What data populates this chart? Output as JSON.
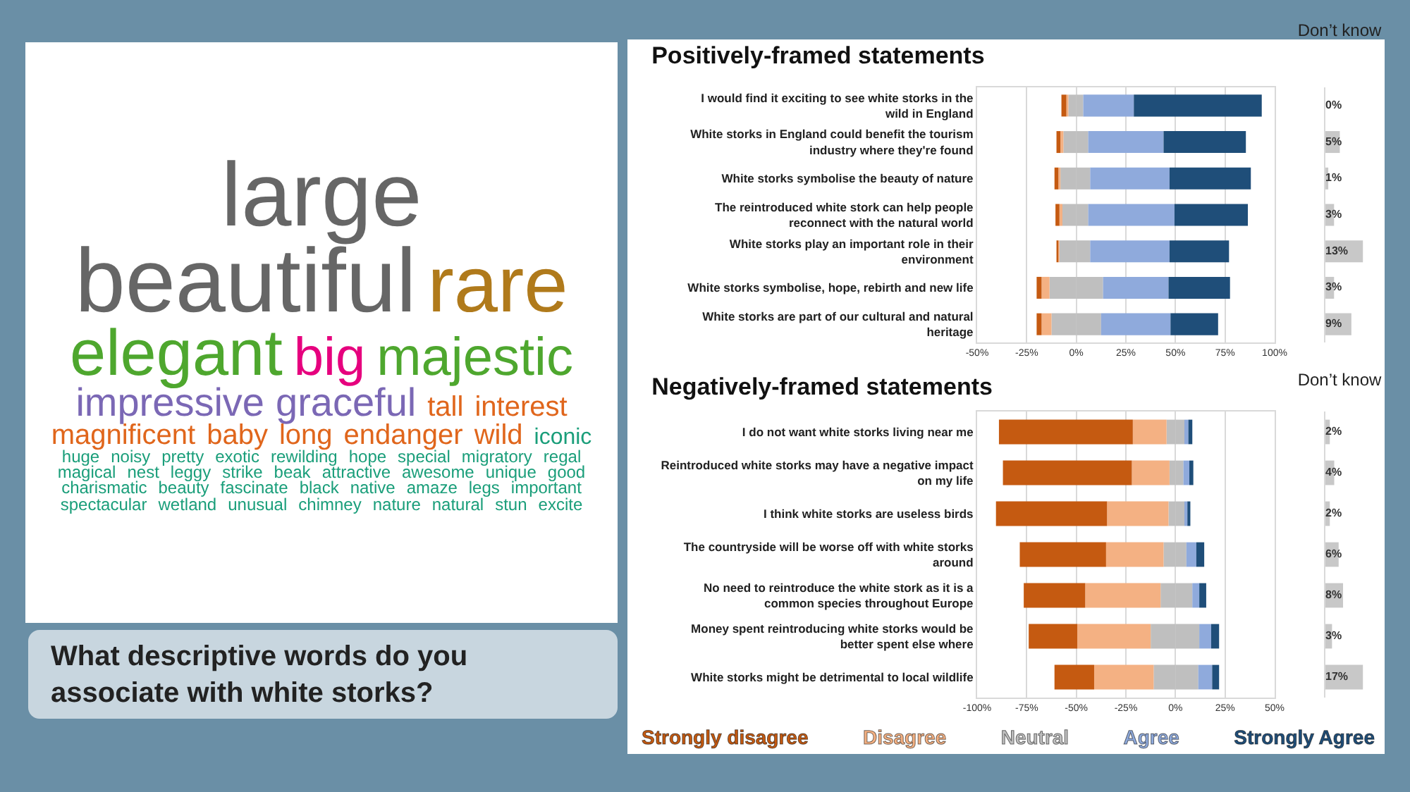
{
  "chart_data": [
    {
      "type": "other",
      "title": "What descriptive words do you associate with white storks?",
      "annotations": [
        "large",
        "beautiful",
        "rare",
        "elegant",
        "big",
        "majestic",
        "impressive",
        "graceful",
        "tall",
        "interest",
        "magnificent",
        "baby",
        "long",
        "endanger",
        "wild",
        "iconic",
        "huge",
        "noisy",
        "pretty",
        "exotic",
        "rewilding",
        "hope",
        "special",
        "migratory",
        "regal",
        "magical",
        "nest",
        "leggy",
        "strike",
        "beak",
        "attractive",
        "awesome",
        "unique",
        "good",
        "charismatic",
        "beauty",
        "fascinate",
        "black",
        "native",
        "amaze",
        "legs",
        "important",
        "spectacular",
        "wetland",
        "unusual",
        "chimney",
        "nature",
        "natural",
        "stun",
        "excite"
      ],
      "colors": [
        "#666666",
        "#666666",
        "#b07a1b",
        "#4ea72e",
        "#e6007e",
        "#4ea72e",
        "#7b68b5",
        "#7b68b5",
        "#e0661c",
        "#e0661c",
        "#e0661c",
        "#e0661c",
        "#e0661c",
        "#e0661c",
        "#e0661c",
        "#1a9e7a",
        "#1a9e7a",
        "#1a9e7a",
        "#1a9e7a",
        "#1a9e7a",
        "#1a9e7a",
        "#1a9e7a",
        "#1a9e7a",
        "#1a9e7a",
        "#1a9e7a",
        "#1a9e7a",
        "#1a9e7a",
        "#1a9e7a",
        "#1a9e7a",
        "#1a9e7a",
        "#1a9e7a",
        "#1a9e7a",
        "#1a9e7a",
        "#1a9e7a",
        "#1a9e7a",
        "#1a9e7a",
        "#1a9e7a",
        "#1a9e7a",
        "#1a9e7a",
        "#1a9e7a",
        "#1a9e7a",
        "#1a9e7a",
        "#1a9e7a",
        "#1a9e7a",
        "#1a9e7a",
        "#1a9e7a",
        "#1a9e7a",
        "#1a9e7a",
        "#1a9e7a",
        "#1a9e7a"
      ]
    },
    {
      "type": "bar",
      "title": "Positively-framed statements",
      "orientation": "horizontal",
      "stacked": true,
      "grid": "x",
      "categories": [
        "I would find it exciting to see white storks in the wild in England",
        "White storks in England could benefit the tourism industry where they're found",
        "White storks symbolise the beauty of nature",
        "The reintroduced white stork can help people reconnect with the natural world",
        "White storks play an important role in their environment",
        "White storks symbolise, hope, rebirth and new life",
        "White storks are part of our cultural and natural heritage"
      ],
      "series": [
        {
          "color": "#bfbfbf",
          "values": [
            -4,
            -6.5,
            -8,
            -7,
            -8.5,
            -13.5,
            -12.5
          ]
        },
        {
          "color": "#f4b183",
          "values": [
            -1,
            -1.5,
            -1,
            -1.5,
            -0.5,
            -4,
            -5
          ]
        },
        {
          "color": "#c55a11",
          "values": [
            -2.5,
            -2,
            -2,
            -2,
            -1,
            -2.5,
            -2.5
          ]
        },
        {
          "color": "#bfbfbf",
          "values": [
            3.5,
            6,
            7,
            6,
            7,
            13.5,
            12.5
          ]
        },
        {
          "color": "#8faadc",
          "values": [
            25.5,
            38,
            40,
            43.5,
            40,
            33,
            35
          ]
        },
        {
          "color": "#1f4e79",
          "values": [
            64.5,
            41.5,
            41,
            37,
            30,
            31,
            24
          ]
        }
      ],
      "xlim": [
        -50,
        100
      ],
      "xticks": [
        {
          "value": -50,
          "label": "-50%"
        },
        {
          "value": -25,
          "label": "-25%"
        },
        {
          "value": 0,
          "label": "0%"
        },
        {
          "value": 25,
          "label": "25%"
        },
        {
          "value": 50,
          "label": "50%"
        },
        {
          "value": 75,
          "label": "75%"
        },
        {
          "value": 100,
          "label": "100%"
        }
      ]
    },
    {
      "type": "bar",
      "title": "Don’t know",
      "orientation": "horizontal",
      "tick_labels": false,
      "color": "#c8c8c8",
      "categories": [
        null,
        null,
        null,
        null,
        null,
        null,
        null
      ],
      "values": [
        0,
        5,
        1,
        3,
        13,
        3,
        9
      ],
      "value_labels": [
        "0%",
        "5%",
        "1%",
        "3%",
        "13%",
        "3%",
        "9%"
      ]
    },
    {
      "type": "bar",
      "title": "Negatively-framed statements",
      "orientation": "horizontal",
      "stacked": true,
      "grid": "x",
      "legend": "bottom",
      "categories": [
        "I do not want white storks living near me",
        "Reintroduced white storks may have a negative impact on my life",
        "I think white storks are useless birds",
        "The countryside will be worse off with white storks around",
        "No need to reintroduce the white stork as it is a common species throughout Europe",
        "Money spent reintroducing white storks would be better spent else where",
        "White storks might be detrimental to local wildlife"
      ],
      "series": [
        {
          "color": "#bfbfbf",
          "values": [
            -4.5,
            -3,
            -3.5,
            -6,
            -7.5,
            -12.5,
            -11
          ]
        },
        {
          "name": "Disagree",
          "color": "#f4b183",
          "values": [
            -17,
            -19,
            -31,
            -29,
            -38,
            -37,
            -30
          ]
        },
        {
          "name": "Strongly disagree",
          "color": "#c55a11",
          "values": [
            -67.5,
            -65,
            -56,
            -43.5,
            -31,
            -24.5,
            -20
          ]
        },
        {
          "name": "Neutral",
          "color": "#bfbfbf",
          "values": [
            4.5,
            4,
            4.5,
            5.5,
            8.5,
            12,
            11.5
          ]
        },
        {
          "name": "Agree",
          "color": "#8faadc",
          "values": [
            2,
            3,
            1.5,
            5,
            3.5,
            6,
            7
          ]
        },
        {
          "name": "Strongly Agree",
          "color": "#1f4e79",
          "values": [
            2,
            2,
            1.5,
            4,
            3.5,
            4,
            3.5
          ]
        }
      ],
      "xlim": [
        -100,
        50
      ],
      "xticks": [
        {
          "value": -100,
          "label": "-100%"
        },
        {
          "value": -75,
          "label": "-75%"
        },
        {
          "value": -50,
          "label": "-50%"
        },
        {
          "value": -25,
          "label": "-25%"
        },
        {
          "value": 0,
          "label": "0%"
        },
        {
          "value": 25,
          "label": "25%"
        },
        {
          "value": 50,
          "label": "50%"
        }
      ]
    },
    {
      "type": "bar",
      "title": "Don’t know",
      "orientation": "horizontal",
      "tick_labels": false,
      "color": "#c8c8c8",
      "categories": [
        null,
        null,
        null,
        null,
        null,
        null,
        null
      ],
      "values": [
        2,
        4,
        2,
        6,
        8,
        3,
        17
      ],
      "value_labels": [
        "2%",
        "4%",
        "2%",
        "6%",
        "8%",
        "3%",
        "17%"
      ]
    }
  ]
}
